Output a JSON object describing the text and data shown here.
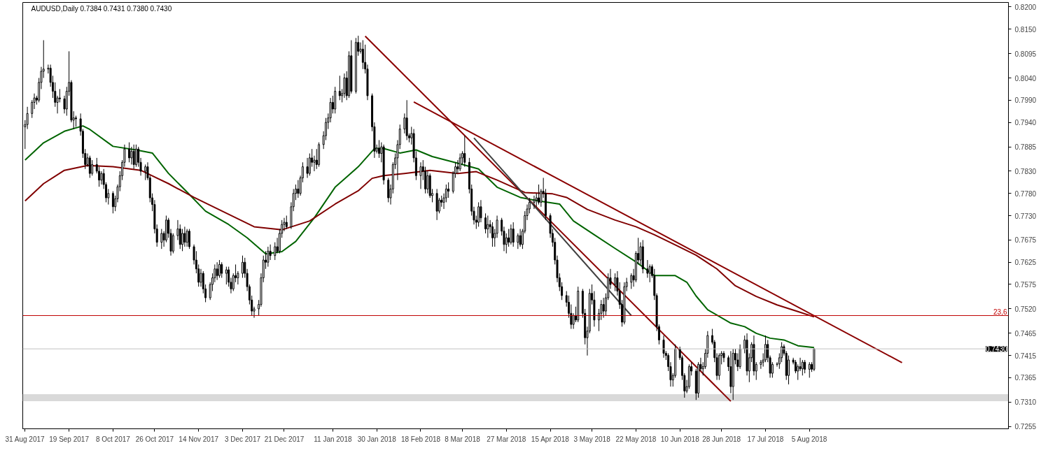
{
  "chart_data": {
    "type": "candlestick",
    "title": "AUDUSD,Daily  0.7384 0.7431 0.7380 0.7430",
    "x": [
      "2017-08-31",
      "2017-09-01",
      "2017-09-03",
      "2017-09-04",
      "2017-09-05",
      "2017-09-06",
      "2017-09-07",
      "2017-09-08",
      "2017-09-10",
      "2017-09-11",
      "2017-09-12",
      "2017-09-13",
      "2017-09-14",
      "2017-09-15",
      "2017-09-17",
      "2017-09-18",
      "2017-09-19",
      "2017-09-20",
      "2017-09-21",
      "2017-09-22",
      "2017-09-24",
      "2017-09-25",
      "2017-09-26",
      "2017-09-27",
      "2017-09-28",
      "2017-09-29",
      "2017-10-01",
      "2017-10-02",
      "2017-10-03",
      "2017-10-04",
      "2017-10-05",
      "2017-10-06",
      "2017-10-08",
      "2017-10-09",
      "2017-10-10",
      "2017-10-11",
      "2017-10-12",
      "2017-10-13",
      "2017-10-15",
      "2017-10-16",
      "2017-10-17",
      "2017-10-18",
      "2017-10-19",
      "2017-10-20",
      "2017-10-22",
      "2017-10-23",
      "2017-10-24",
      "2017-10-25",
      "2017-10-26",
      "2017-10-27",
      "2017-10-29",
      "2017-10-30",
      "2017-10-31",
      "2017-11-01",
      "2017-11-02",
      "2017-11-03",
      "2017-11-05",
      "2017-11-06",
      "2017-11-07",
      "2017-11-08",
      "2017-11-09",
      "2017-11-10",
      "2017-11-12",
      "2017-11-13",
      "2017-11-14",
      "2017-11-15",
      "2017-11-16",
      "2017-11-17",
      "2017-11-19",
      "2017-11-20",
      "2017-11-21",
      "2017-11-22",
      "2017-11-23",
      "2017-11-24",
      "2017-11-26",
      "2017-11-27",
      "2017-11-28",
      "2017-11-29",
      "2017-11-30",
      "2017-12-01",
      "2017-12-03",
      "2017-12-04",
      "2017-12-05",
      "2017-12-06",
      "2017-12-07",
      "2017-12-08",
      "2017-12-10",
      "2017-12-11",
      "2017-12-12",
      "2017-12-13",
      "2017-12-14",
      "2017-12-15",
      "2017-12-17",
      "2017-12-18",
      "2017-12-19",
      "2017-12-20",
      "2017-12-21",
      "2017-12-22",
      "2017-12-24",
      "2017-12-25",
      "2017-12-26",
      "2017-12-27",
      "2017-12-28",
      "2017-12-29",
      "2017-12-31",
      "2018-01-01",
      "2018-01-02",
      "2018-01-03",
      "2018-01-04",
      "2018-01-05",
      "2018-01-07",
      "2018-01-08",
      "2018-01-09",
      "2018-01-10",
      "2018-01-11",
      "2018-01-12",
      "2018-01-14",
      "2018-01-15",
      "2018-01-16",
      "2018-01-17",
      "2018-01-18",
      "2018-01-19",
      "2018-01-21",
      "2018-01-22",
      "2018-01-23",
      "2018-01-24",
      "2018-01-25",
      "2018-01-26",
      "2018-01-28",
      "2018-01-29",
      "2018-01-30",
      "2018-01-31",
      "2018-02-01",
      "2018-02-02",
      "2018-02-04",
      "2018-02-05",
      "2018-02-06",
      "2018-02-07",
      "2018-02-08",
      "2018-02-09",
      "2018-02-11",
      "2018-02-12",
      "2018-02-13",
      "2018-02-14",
      "2018-02-15",
      "2018-02-16",
      "2018-02-18",
      "2018-02-19",
      "2018-02-20",
      "2018-02-21",
      "2018-02-22",
      "2018-02-23",
      "2018-02-25",
      "2018-02-26",
      "2018-02-27",
      "2018-02-28",
      "2018-03-01",
      "2018-03-02",
      "2018-03-04",
      "2018-03-05",
      "2018-03-06",
      "2018-03-07",
      "2018-03-08",
      "2018-03-09",
      "2018-03-11",
      "2018-03-12",
      "2018-03-13",
      "2018-03-14",
      "2018-03-15",
      "2018-03-16",
      "2018-03-18",
      "2018-03-19",
      "2018-03-20",
      "2018-03-21",
      "2018-03-22",
      "2018-03-23",
      "2018-03-25",
      "2018-03-26",
      "2018-03-27",
      "2018-03-28",
      "2018-03-29",
      "2018-03-30",
      "2018-04-01",
      "2018-04-02",
      "2018-04-03",
      "2018-04-04",
      "2018-04-05",
      "2018-04-06",
      "2018-04-08",
      "2018-04-09",
      "2018-04-10",
      "2018-04-11",
      "2018-04-12",
      "2018-04-13",
      "2018-04-15",
      "2018-04-16",
      "2018-04-17",
      "2018-04-18",
      "2018-04-19",
      "2018-04-20",
      "2018-04-22",
      "2018-04-23",
      "2018-04-24",
      "2018-04-25",
      "2018-04-26",
      "2018-04-27",
      "2018-04-29",
      "2018-04-30",
      "2018-05-01",
      "2018-05-02",
      "2018-05-03",
      "2018-05-04",
      "2018-05-06",
      "2018-05-07",
      "2018-05-08",
      "2018-05-09",
      "2018-05-10",
      "2018-05-11",
      "2018-05-13",
      "2018-05-14",
      "2018-05-15",
      "2018-05-16",
      "2018-05-17",
      "2018-05-18",
      "2018-05-20",
      "2018-05-21",
      "2018-05-22",
      "2018-05-23",
      "2018-05-24",
      "2018-05-25",
      "2018-05-27",
      "2018-05-28",
      "2018-05-29",
      "2018-05-30",
      "2018-05-31",
      "2018-06-01",
      "2018-06-03",
      "2018-06-04",
      "2018-06-05",
      "2018-06-06",
      "2018-06-07",
      "2018-06-08",
      "2018-06-10",
      "2018-06-11",
      "2018-06-12",
      "2018-06-13",
      "2018-06-14",
      "2018-06-15",
      "2018-06-17",
      "2018-06-18",
      "2018-06-19",
      "2018-06-20",
      "2018-06-21",
      "2018-06-22",
      "2018-06-24",
      "2018-06-25",
      "2018-06-26",
      "2018-06-27",
      "2018-06-28",
      "2018-06-29",
      "2018-07-01",
      "2018-07-02",
      "2018-07-03",
      "2018-07-04",
      "2018-07-05",
      "2018-07-06",
      "2018-07-08",
      "2018-07-09",
      "2018-07-10",
      "2018-07-11",
      "2018-07-12",
      "2018-07-13",
      "2018-07-15",
      "2018-07-16",
      "2018-07-17",
      "2018-07-18",
      "2018-07-19",
      "2018-07-20",
      "2018-07-22",
      "2018-07-23",
      "2018-07-24",
      "2018-07-25",
      "2018-07-26",
      "2018-07-27",
      "2018-07-29",
      "2018-07-30",
      "2018-07-31",
      "2018-08-01",
      "2018-08-02",
      "2018-08-03",
      "2018-08-05",
      "2018-08-06",
      "2018-08-07"
    ],
    "ohlc": [
      [
        0.793,
        0.7945,
        0.788,
        0.7935
      ],
      [
        0.7935,
        0.7975,
        0.7925,
        0.796
      ],
      [
        0.796,
        0.799,
        0.795,
        0.7985
      ],
      [
        0.7985,
        0.8005,
        0.797,
        0.7995
      ],
      [
        0.7995,
        0.8,
        0.798,
        0.799
      ],
      [
        0.799,
        0.804,
        0.7985,
        0.803
      ],
      [
        0.803,
        0.8065,
        0.8015,
        0.8055
      ],
      [
        0.8055,
        0.8125,
        0.804,
        0.806
      ],
      [
        0.806,
        0.807,
        0.805,
        0.8062
      ],
      [
        0.8062,
        0.807,
        0.802,
        0.803
      ],
      [
        0.803,
        0.8045,
        0.7995,
        0.801
      ],
      [
        0.801,
        0.803,
        0.7975,
        0.7985
      ],
      [
        0.7985,
        0.8,
        0.796,
        0.7995
      ],
      [
        0.7995,
        0.8015,
        0.7985,
        0.7993
      ],
      [
        0.7993,
        0.8,
        0.796,
        0.797
      ],
      [
        0.797,
        0.802,
        0.7955,
        0.801
      ],
      [
        0.801,
        0.81,
        0.8,
        0.803
      ],
      [
        0.803,
        0.8035,
        0.794,
        0.7945
      ],
      [
        0.7945,
        0.7965,
        0.7925,
        0.795
      ],
      [
        0.795,
        0.7955,
        0.793,
        0.7948
      ],
      [
        0.7948,
        0.796,
        0.791,
        0.792
      ],
      [
        0.792,
        0.7925,
        0.786,
        0.787
      ],
      [
        0.787,
        0.788,
        0.7835,
        0.7845
      ],
      [
        0.7845,
        0.787,
        0.784,
        0.786
      ],
      [
        0.786,
        0.7865,
        0.7815,
        0.7825
      ],
      [
        0.7825,
        0.7855,
        0.782,
        0.7845
      ],
      [
        0.7845,
        0.786,
        0.7825,
        0.783
      ],
      [
        0.783,
        0.784,
        0.7795,
        0.781
      ],
      [
        0.781,
        0.783,
        0.78,
        0.7825
      ],
      [
        0.7825,
        0.7835,
        0.779,
        0.78
      ],
      [
        0.78,
        0.7805,
        0.776,
        0.777
      ],
      [
        0.777,
        0.779,
        0.7755,
        0.778
      ],
      [
        0.778,
        0.7785,
        0.7735,
        0.775
      ],
      [
        0.775,
        0.7775,
        0.774,
        0.7768
      ],
      [
        0.7768,
        0.78,
        0.776,
        0.7795
      ],
      [
        0.7795,
        0.783,
        0.7785,
        0.782
      ],
      [
        0.782,
        0.7855,
        0.781,
        0.785
      ],
      [
        0.785,
        0.789,
        0.784,
        0.788
      ],
      [
        0.788,
        0.7895,
        0.785,
        0.786
      ],
      [
        0.786,
        0.7885,
        0.7845,
        0.7875
      ],
      [
        0.7875,
        0.789,
        0.7835,
        0.7845
      ],
      [
        0.7845,
        0.789,
        0.784,
        0.788
      ],
      [
        0.788,
        0.7885,
        0.784,
        0.785
      ],
      [
        0.785,
        0.786,
        0.782,
        0.783
      ],
      [
        0.783,
        0.7845,
        0.781,
        0.784
      ],
      [
        0.784,
        0.785,
        0.781,
        0.7815
      ],
      [
        0.7815,
        0.782,
        0.776,
        0.777
      ],
      [
        0.777,
        0.778,
        0.774,
        0.7755
      ],
      [
        0.7755,
        0.7765,
        0.769,
        0.77
      ],
      [
        0.77,
        0.771,
        0.766,
        0.767
      ],
      [
        0.767,
        0.77,
        0.7655,
        0.769
      ],
      [
        0.769,
        0.7695,
        0.766,
        0.7675
      ],
      [
        0.7675,
        0.773,
        0.767,
        0.772
      ],
      [
        0.772,
        0.7725,
        0.768,
        0.769
      ],
      [
        0.769,
        0.77,
        0.764,
        0.765
      ],
      [
        0.765,
        0.769,
        0.7645,
        0.7685
      ],
      [
        0.7685,
        0.772,
        0.7675,
        0.77
      ],
      [
        0.77,
        0.771,
        0.7655,
        0.7665
      ],
      [
        0.7665,
        0.77,
        0.765,
        0.769
      ],
      [
        0.769,
        0.7705,
        0.766,
        0.767
      ],
      [
        0.767,
        0.77,
        0.766,
        0.7695
      ],
      [
        0.7695,
        0.77,
        0.7655,
        0.766
      ],
      [
        0.766,
        0.7665,
        0.762,
        0.763
      ],
      [
        0.763,
        0.765,
        0.76,
        0.761
      ],
      [
        0.761,
        0.762,
        0.757,
        0.758
      ],
      [
        0.758,
        0.761,
        0.757,
        0.76
      ],
      [
        0.76,
        0.7605,
        0.7555,
        0.7565
      ],
      [
        0.7565,
        0.7575,
        0.7535,
        0.7545
      ],
      [
        0.7545,
        0.758,
        0.754,
        0.7575
      ],
      [
        0.7575,
        0.76,
        0.756,
        0.759
      ],
      [
        0.759,
        0.762,
        0.758,
        0.761
      ],
      [
        0.761,
        0.7625,
        0.7585,
        0.7595
      ],
      [
        0.7595,
        0.763,
        0.759,
        0.762
      ],
      [
        0.762,
        0.7625,
        0.759,
        0.76
      ],
      [
        0.76,
        0.7615,
        0.7575,
        0.7608
      ],
      [
        0.7608,
        0.7615,
        0.757,
        0.758
      ],
      [
        0.758,
        0.759,
        0.7555,
        0.7565
      ],
      [
        0.7565,
        0.76,
        0.756,
        0.7595
      ],
      [
        0.7595,
        0.762,
        0.758,
        0.759
      ],
      [
        0.759,
        0.7605,
        0.7575,
        0.76
      ],
      [
        0.76,
        0.764,
        0.759,
        0.7625
      ],
      [
        0.7625,
        0.7635,
        0.759,
        0.76
      ],
      [
        0.76,
        0.761,
        0.756,
        0.757
      ],
      [
        0.757,
        0.7575,
        0.753,
        0.754
      ],
      [
        0.754,
        0.755,
        0.7505,
        0.7515
      ],
      [
        0.7515,
        0.7525,
        0.75,
        0.752
      ],
      [
        0.752,
        0.754,
        0.7505,
        0.753
      ],
      [
        0.753,
        0.76,
        0.7525,
        0.759
      ],
      [
        0.759,
        0.764,
        0.758,
        0.763
      ],
      [
        0.763,
        0.765,
        0.761,
        0.7625
      ],
      [
        0.7625,
        0.766,
        0.7615,
        0.765
      ],
      [
        0.765,
        0.7665,
        0.763,
        0.764
      ],
      [
        0.764,
        0.767,
        0.763,
        0.766
      ],
      [
        0.766,
        0.768,
        0.7645,
        0.765
      ],
      [
        0.765,
        0.77,
        0.7645,
        0.769
      ],
      [
        0.769,
        0.772,
        0.768,
        0.771
      ],
      [
        0.771,
        0.7725,
        0.7695,
        0.7715
      ],
      [
        0.7715,
        0.773,
        0.77,
        0.7705
      ],
      [
        0.7705,
        0.776,
        0.77,
        0.775
      ],
      [
        0.775,
        0.779,
        0.774,
        0.778
      ],
      [
        0.778,
        0.78,
        0.7765,
        0.779
      ],
      [
        0.779,
        0.781,
        0.777,
        0.778
      ],
      [
        0.778,
        0.782,
        0.7775,
        0.7815
      ],
      [
        0.7815,
        0.785,
        0.7805,
        0.784
      ],
      [
        0.784,
        0.786,
        0.7815,
        0.7825
      ],
      [
        0.7825,
        0.787,
        0.782,
        0.786
      ],
      [
        0.786,
        0.788,
        0.784,
        0.785
      ],
      [
        0.785,
        0.7865,
        0.783,
        0.7855
      ],
      [
        0.7855,
        0.788,
        0.7835,
        0.7845
      ],
      [
        0.7845,
        0.7895,
        0.784,
        0.789
      ],
      [
        0.789,
        0.792,
        0.788,
        0.791
      ],
      [
        0.791,
        0.795,
        0.79,
        0.794
      ],
      [
        0.794,
        0.796,
        0.7925,
        0.795
      ],
      [
        0.795,
        0.7995,
        0.794,
        0.7985
      ],
      [
        0.7985,
        0.8,
        0.796,
        0.797
      ],
      [
        0.797,
        0.802,
        0.796,
        0.801
      ],
      [
        0.801,
        0.8045,
        0.799,
        0.8
      ],
      [
        0.8,
        0.8015,
        0.7985,
        0.8005
      ],
      [
        0.8005,
        0.805,
        0.7995,
        0.804
      ],
      [
        0.804,
        0.8055,
        0.799,
        0.8
      ],
      [
        0.8,
        0.81,
        0.7995,
        0.809
      ],
      [
        0.809,
        0.8125,
        0.8005,
        0.801
      ],
      [
        0.801,
        0.813,
        0.8005,
        0.812
      ],
      [
        0.812,
        0.8135,
        0.809,
        0.81
      ],
      [
        0.81,
        0.812,
        0.8095,
        0.8105
      ],
      [
        0.8105,
        0.8125,
        0.806,
        0.8075
      ],
      [
        0.8075,
        0.8115,
        0.805,
        0.806
      ],
      [
        0.806,
        0.807,
        0.799,
        0.8
      ],
      [
        0.8,
        0.8005,
        0.792,
        0.793
      ],
      [
        0.793,
        0.794,
        0.786,
        0.7875
      ],
      [
        0.7875,
        0.789,
        0.787,
        0.7882
      ],
      [
        0.7882,
        0.79,
        0.786,
        0.787
      ],
      [
        0.787,
        0.7895,
        0.785,
        0.7885
      ],
      [
        0.7885,
        0.789,
        0.78,
        0.781
      ],
      [
        0.781,
        0.7815,
        0.776,
        0.777
      ],
      [
        0.777,
        0.78,
        0.7755,
        0.779
      ],
      [
        0.779,
        0.785,
        0.778,
        0.7845
      ],
      [
        0.7845,
        0.787,
        0.7835,
        0.786
      ],
      [
        0.786,
        0.79,
        0.781,
        0.789
      ],
      [
        0.789,
        0.7935,
        0.788,
        0.7925
      ],
      [
        0.7925,
        0.796,
        0.7915,
        0.795
      ],
      [
        0.795,
        0.799,
        0.79,
        0.791
      ],
      [
        0.791,
        0.7915,
        0.7895,
        0.7905
      ],
      [
        0.7905,
        0.793,
        0.789,
        0.7915
      ],
      [
        0.7915,
        0.7925,
        0.785,
        0.786
      ],
      [
        0.786,
        0.7875,
        0.781,
        0.782
      ],
      [
        0.782,
        0.785,
        0.779,
        0.784
      ],
      [
        0.784,
        0.7855,
        0.781,
        0.783
      ],
      [
        0.783,
        0.784,
        0.778,
        0.779
      ],
      [
        0.779,
        0.783,
        0.778,
        0.782
      ],
      [
        0.782,
        0.7825,
        0.777,
        0.7775
      ],
      [
        0.7775,
        0.779,
        0.776,
        0.778
      ],
      [
        0.778,
        0.779,
        0.772,
        0.774
      ],
      [
        0.774,
        0.777,
        0.7735,
        0.7765
      ],
      [
        0.7765,
        0.7775,
        0.775,
        0.776
      ],
      [
        0.776,
        0.778,
        0.7745,
        0.777
      ],
      [
        0.777,
        0.78,
        0.776,
        0.779
      ],
      [
        0.779,
        0.7805,
        0.777,
        0.7785
      ],
      [
        0.7785,
        0.783,
        0.778,
        0.7825
      ],
      [
        0.7825,
        0.785,
        0.7815,
        0.784
      ],
      [
        0.784,
        0.7855,
        0.7825,
        0.7835
      ],
      [
        0.7835,
        0.787,
        0.783,
        0.786
      ],
      [
        0.786,
        0.7875,
        0.7845,
        0.787
      ],
      [
        0.787,
        0.791,
        0.784,
        0.785
      ],
      [
        0.785,
        0.786,
        0.778,
        0.779
      ],
      [
        0.779,
        0.78,
        0.773,
        0.774
      ],
      [
        0.774,
        0.775,
        0.771,
        0.772
      ],
      [
        0.772,
        0.773,
        0.77,
        0.7715
      ],
      [
        0.7715,
        0.776,
        0.7705,
        0.775
      ],
      [
        0.775,
        0.7765,
        0.7715,
        0.7725
      ],
      [
        0.7725,
        0.7735,
        0.769,
        0.77
      ],
      [
        0.77,
        0.773,
        0.768,
        0.771
      ],
      [
        0.771,
        0.772,
        0.769,
        0.7705
      ],
      [
        0.7705,
        0.7715,
        0.766,
        0.768
      ],
      [
        0.768,
        0.77,
        0.766,
        0.769
      ],
      [
        0.769,
        0.773,
        0.768,
        0.772
      ],
      [
        0.772,
        0.7725,
        0.7685,
        0.7695
      ],
      [
        0.7695,
        0.7705,
        0.765,
        0.7665
      ],
      [
        0.7665,
        0.769,
        0.7645,
        0.768
      ],
      [
        0.768,
        0.77,
        0.766,
        0.767
      ],
      [
        0.767,
        0.771,
        0.7665,
        0.77
      ],
      [
        0.77,
        0.7715,
        0.766,
        0.767
      ],
      [
        0.767,
        0.769,
        0.7655,
        0.7685
      ],
      [
        0.7685,
        0.77,
        0.766,
        0.7665
      ],
      [
        0.7665,
        0.77,
        0.7655,
        0.7695
      ],
      [
        0.7695,
        0.774,
        0.769,
        0.773
      ],
      [
        0.773,
        0.7755,
        0.772,
        0.7745
      ],
      [
        0.7745,
        0.777,
        0.7735,
        0.776
      ],
      [
        0.776,
        0.7775,
        0.7745,
        0.7765
      ],
      [
        0.7765,
        0.778,
        0.775,
        0.777
      ],
      [
        0.777,
        0.78,
        0.7755,
        0.776
      ],
      [
        0.776,
        0.779,
        0.775,
        0.7785
      ],
      [
        0.7785,
        0.7815,
        0.777,
        0.778
      ],
      [
        0.778,
        0.779,
        0.772,
        0.773
      ],
      [
        0.773,
        0.7735,
        0.768,
        0.769
      ],
      [
        0.769,
        0.77,
        0.766,
        0.767
      ],
      [
        0.767,
        0.768,
        0.762,
        0.763
      ],
      [
        0.763,
        0.764,
        0.758,
        0.759
      ],
      [
        0.759,
        0.76,
        0.756,
        0.757
      ],
      [
        0.757,
        0.758,
        0.754,
        0.755
      ],
      [
        0.755,
        0.756,
        0.7525,
        0.7535
      ],
      [
        0.7535,
        0.755,
        0.75,
        0.751
      ],
      [
        0.751,
        0.753,
        0.7475,
        0.7485
      ],
      [
        0.7485,
        0.751,
        0.7475,
        0.7505
      ],
      [
        0.7505,
        0.7525,
        0.749,
        0.7495
      ],
      [
        0.7495,
        0.757,
        0.749,
        0.756
      ],
      [
        0.756,
        0.7565,
        0.75,
        0.751
      ],
      [
        0.751,
        0.752,
        0.744,
        0.7455
      ],
      [
        0.7455,
        0.748,
        0.7415,
        0.747
      ],
      [
        0.747,
        0.7565,
        0.7465,
        0.7555
      ],
      [
        0.7555,
        0.7575,
        0.753,
        0.754
      ],
      [
        0.754,
        0.756,
        0.748,
        0.7495
      ],
      [
        0.7495,
        0.752,
        0.747,
        0.751
      ],
      [
        0.751,
        0.754,
        0.7495,
        0.753
      ],
      [
        0.753,
        0.7545,
        0.75,
        0.7515
      ],
      [
        0.7515,
        0.7555,
        0.7505,
        0.7545
      ],
      [
        0.7545,
        0.76,
        0.754,
        0.759
      ],
      [
        0.759,
        0.761,
        0.7565,
        0.7575
      ],
      [
        0.7575,
        0.76,
        0.756,
        0.759
      ],
      [
        0.759,
        0.7605,
        0.755,
        0.756
      ],
      [
        0.756,
        0.758,
        0.752,
        0.753
      ],
      [
        0.753,
        0.754,
        0.748,
        0.749
      ],
      [
        0.749,
        0.758,
        0.7485,
        0.757
      ],
      [
        0.757,
        0.759,
        0.756,
        0.758
      ],
      [
        0.758,
        0.76,
        0.7565,
        0.7595
      ],
      [
        0.7595,
        0.761,
        0.757,
        0.7585
      ],
      [
        0.7585,
        0.765,
        0.758,
        0.7645
      ],
      [
        0.7645,
        0.768,
        0.762,
        0.763
      ],
      [
        0.763,
        0.767,
        0.762,
        0.766
      ],
      [
        0.766,
        0.7675,
        0.76,
        0.761
      ],
      [
        0.761,
        0.763,
        0.759,
        0.76
      ],
      [
        0.76,
        0.762,
        0.758,
        0.7615
      ],
      [
        0.7615,
        0.762,
        0.759,
        0.7595
      ],
      [
        0.7595,
        0.761,
        0.754,
        0.755
      ],
      [
        0.755,
        0.7555,
        0.747,
        0.748
      ],
      [
        0.748,
        0.7485,
        0.744,
        0.745
      ],
      [
        0.745,
        0.746,
        0.741,
        0.742
      ],
      [
        0.742,
        0.7425,
        0.7405,
        0.7415
      ],
      [
        0.7415,
        0.742,
        0.738,
        0.739
      ],
      [
        0.739,
        0.74,
        0.7345,
        0.736
      ],
      [
        0.736,
        0.7375,
        0.7345,
        0.737
      ],
      [
        0.737,
        0.744,
        0.7365,
        0.743
      ],
      [
        0.743,
        0.7435,
        0.7405,
        0.741
      ],
      [
        0.741,
        0.7415,
        0.736,
        0.737
      ],
      [
        0.737,
        0.7375,
        0.732,
        0.7335
      ],
      [
        0.7335,
        0.736,
        0.733,
        0.7345
      ],
      [
        0.7345,
        0.7395,
        0.734,
        0.739
      ],
      [
        0.739,
        0.74,
        0.737,
        0.738
      ],
      [
        0.738,
        0.7385,
        0.7315,
        0.733
      ],
      [
        0.733,
        0.74,
        0.732,
        0.7395
      ],
      [
        0.7395,
        0.741,
        0.738,
        0.7385
      ],
      [
        0.7385,
        0.74,
        0.737,
        0.739
      ],
      [
        0.739,
        0.743,
        0.7385,
        0.742
      ],
      [
        0.742,
        0.747,
        0.741,
        0.746
      ],
      [
        0.746,
        0.7475,
        0.744,
        0.7445
      ],
      [
        0.7445,
        0.745,
        0.74,
        0.741
      ],
      [
        0.741,
        0.742,
        0.736,
        0.737
      ],
      [
        0.737,
        0.742,
        0.736,
        0.7415
      ],
      [
        0.7415,
        0.7425,
        0.7395,
        0.742
      ],
      [
        0.742,
        0.7425,
        0.74,
        0.741
      ],
      [
        0.741,
        0.7415,
        0.738,
        0.739
      ],
      [
        0.739,
        0.7425,
        0.733,
        0.7345
      ],
      [
        0.7345,
        0.743,
        0.7315,
        0.742
      ],
      [
        0.742,
        0.743,
        0.7395,
        0.7405
      ],
      [
        0.7405,
        0.742,
        0.738,
        0.739
      ],
      [
        0.739,
        0.744,
        0.7385,
        0.743
      ],
      [
        0.743,
        0.746,
        0.742,
        0.745
      ],
      [
        0.745,
        0.7465,
        0.737,
        0.738
      ],
      [
        0.738,
        0.742,
        0.7355,
        0.741
      ],
      [
        0.741,
        0.7445,
        0.74,
        0.744
      ],
      [
        0.744,
        0.746,
        0.737,
        0.738
      ],
      [
        0.738,
        0.74,
        0.736,
        0.7395
      ],
      [
        0.7395,
        0.7405,
        0.7385,
        0.74
      ],
      [
        0.74,
        0.742,
        0.739,
        0.7405
      ],
      [
        0.7405,
        0.746,
        0.74,
        0.744
      ],
      [
        0.744,
        0.745,
        0.74,
        0.741
      ],
      [
        0.741,
        0.7415,
        0.7365,
        0.7375
      ],
      [
        0.7375,
        0.74,
        0.7365,
        0.7395
      ],
      [
        0.7395,
        0.74,
        0.739,
        0.7396
      ],
      [
        0.7396,
        0.742,
        0.7385,
        0.741
      ],
      [
        0.741,
        0.7445,
        0.74,
        0.7435
      ],
      [
        0.7435,
        0.744,
        0.7415,
        0.742
      ],
      [
        0.742,
        0.7425,
        0.736,
        0.737
      ],
      [
        0.737,
        0.7415,
        0.735,
        0.7405
      ],
      [
        0.7405,
        0.741,
        0.7395,
        0.74
      ],
      [
        0.74,
        0.7405,
        0.7375,
        0.738
      ],
      [
        0.738,
        0.7395,
        0.736,
        0.739
      ],
      [
        0.739,
        0.741,
        0.738,
        0.7385
      ],
      [
        0.7385,
        0.7405,
        0.737,
        0.74
      ],
      [
        0.74,
        0.7405,
        0.7375,
        0.7384
      ],
      [
        0.7384,
        0.74,
        0.7365,
        0.7395
      ],
      [
        0.7395,
        0.74,
        0.7378,
        0.7384
      ],
      [
        0.7384,
        0.7431,
        0.738,
        0.743
      ]
    ],
    "series": [
      {
        "type": "line",
        "color": "#006400",
        "x": [
          "2017-08-31",
          "2017-09-08",
          "2017-09-17",
          "2017-09-25",
          "2017-09-28",
          "2017-10-08",
          "2017-10-18",
          "2017-10-25",
          "2017-11-01",
          "2017-11-09",
          "2017-11-17",
          "2017-11-27",
          "2017-12-05",
          "2017-12-13",
          "2017-12-20",
          "2017-12-26",
          "2018-01-03",
          "2018-01-12",
          "2018-01-22",
          "2018-01-29",
          "2018-02-02",
          "2018-02-09",
          "2018-02-16",
          "2018-02-23",
          "2018-03-06",
          "2018-03-15",
          "2018-03-23",
          "2018-04-02",
          "2018-04-10",
          "2018-04-19",
          "2018-04-25",
          "2018-05-04",
          "2018-05-13",
          "2018-05-22",
          "2018-05-30",
          "2018-06-08",
          "2018-06-13",
          "2018-06-17",
          "2018-06-22",
          "2018-07-02",
          "2018-07-08",
          "2018-07-13",
          "2018-07-19",
          "2018-07-25",
          "2018-07-31",
          "2018-08-07"
        ],
        "values": [
          0.7855,
          0.7894,
          0.792,
          0.7932,
          0.7924,
          0.7886,
          0.7878,
          0.7871,
          0.7825,
          0.7783,
          0.774,
          0.771,
          0.768,
          0.7644,
          0.7649,
          0.7672,
          0.7725,
          0.7794,
          0.784,
          0.7881,
          0.7881,
          0.7871,
          0.7878,
          0.7863,
          0.7848,
          0.7835,
          0.7794,
          0.7771,
          0.7763,
          0.7756,
          0.7718,
          0.7687,
          0.7656,
          0.7626,
          0.7595,
          0.7595,
          0.758,
          0.7549,
          0.7518,
          0.7488,
          0.748,
          0.7465,
          0.7454,
          0.745,
          0.7437,
          0.7433
        ]
      },
      {
        "type": "line",
        "color": "#800000",
        "x": [
          "2017-08-31",
          "2017-09-08",
          "2017-09-17",
          "2017-09-27",
          "2017-10-08",
          "2017-10-20",
          "2017-11-01",
          "2017-11-12",
          "2017-11-27",
          "2017-12-08",
          "2017-12-20",
          "2018-01-01",
          "2018-01-12",
          "2018-01-22",
          "2018-01-28",
          "2018-02-02",
          "2018-02-11",
          "2018-02-22",
          "2018-03-06",
          "2018-03-14",
          "2018-03-23",
          "2018-04-04",
          "2018-04-16",
          "2018-04-22",
          "2018-05-01",
          "2018-05-13",
          "2018-05-22",
          "2018-05-30",
          "2018-06-08",
          "2018-06-17",
          "2018-06-26",
          "2018-07-04",
          "2018-07-13",
          "2018-07-22",
          "2018-07-31",
          "2018-08-07"
        ],
        "values": [
          0.7763,
          0.7802,
          0.7832,
          0.7843,
          0.784,
          0.7832,
          0.7802,
          0.7771,
          0.7733,
          0.7705,
          0.7698,
          0.7718,
          0.7756,
          0.7786,
          0.7814,
          0.782,
          0.7825,
          0.7832,
          0.7825,
          0.7829,
          0.781,
          0.7782,
          0.7779,
          0.7771,
          0.7744,
          0.772,
          0.7705,
          0.7687,
          0.7664,
          0.7641,
          0.761,
          0.7572,
          0.7548,
          0.7529,
          0.7514,
          0.7502
        ]
      },
      {
        "type": "line",
        "color": "#8b0000",
        "x": [
          "2018-01-25",
          "2018-07-02"
        ],
        "values": [
          0.8134,
          0.7312
        ]
      },
      {
        "type": "line",
        "color": "#8b0000",
        "x": [
          "2018-02-15",
          "2018-09-14"
        ],
        "values": [
          0.7986,
          0.7399
        ]
      },
      {
        "type": "line",
        "color": "#404040",
        "x": [
          "2018-03-13",
          "2018-05-20"
        ],
        "values": [
          0.7905,
          0.7505
        ]
      }
    ],
    "ref_lines": [
      {
        "axis": "y",
        "value": 0.7505,
        "color": "#c00000"
      },
      {
        "axis": "y",
        "value": 0.743,
        "label": "0.7430",
        "color": "#c0c0c0"
      }
    ],
    "bands": [
      {
        "axis": "y",
        "from": 0.7312,
        "to": 0.7328,
        "color": "#d9d9d9"
      }
    ],
    "annotations": [
      {
        "text": "23,6",
        "x": "2018-10-30",
        "y": 0.7505
      }
    ],
    "xlim": [
      "2017-08-30",
      "2018-10-30"
    ],
    "ylim": [
      0.725,
      0.821
    ],
    "xticks": [
      {
        "value": "2017-08-31",
        "label": "31 Aug 2017"
      },
      {
        "value": "2017-09-19",
        "label": "19 Sep 2017"
      },
      {
        "value": "2017-10-08",
        "label": "8 Oct 2017"
      },
      {
        "value": "2017-10-26",
        "label": "26 Oct 2017"
      },
      {
        "value": "2017-11-14",
        "label": "14 Nov 2017"
      },
      {
        "value": "2017-12-03",
        "label": "3 Dec 2017"
      },
      {
        "value": "2017-12-21",
        "label": "21 Dec 2017"
      },
      {
        "value": "2018-01-11",
        "label": "11 Jan 2018"
      },
      {
        "value": "2018-01-30",
        "label": "30 Jan 2018"
      },
      {
        "value": "2018-02-18",
        "label": "18 Feb 2018"
      },
      {
        "value": "2018-03-08",
        "label": "8 Mar 2018"
      },
      {
        "value": "2018-03-27",
        "label": "27 Mar 2018"
      },
      {
        "value": "2018-04-15",
        "label": "15 Apr 2018"
      },
      {
        "value": "2018-05-03",
        "label": "3 May 2018"
      },
      {
        "value": "2018-05-22",
        "label": "22 May 2018"
      },
      {
        "value": "2018-06-10",
        "label": "10 Jun 2018"
      },
      {
        "value": "2018-06-28",
        "label": "28 Jun 2018"
      },
      {
        "value": "2018-07-17",
        "label": "17 Jul 2018"
      },
      {
        "value": "2018-08-05",
        "label": "5 Aug 2018"
      }
    ],
    "yticks": [
      {
        "value": 0.7255,
        "label": "0.7255"
      },
      {
        "value": 0.731,
        "label": "0.7310"
      },
      {
        "value": 0.7365,
        "label": "0.7365"
      },
      {
        "value": 0.7415,
        "label": "0.7415"
      },
      {
        "value": 0.7465,
        "label": "0.7465"
      },
      {
        "value": 0.752,
        "label": "0.7520"
      },
      {
        "value": 0.7575,
        "label": "0.7575"
      },
      {
        "value": 0.7625,
        "label": "0.7625"
      },
      {
        "value": 0.7675,
        "label": "0.7675"
      },
      {
        "value": 0.773,
        "label": "0.7730"
      },
      {
        "value": 0.778,
        "label": "0.7780"
      },
      {
        "value": 0.783,
        "label": "0.7830"
      },
      {
        "value": 0.7885,
        "label": "0.7885"
      },
      {
        "value": 0.794,
        "label": "0.7940"
      },
      {
        "value": 0.799,
        "label": "0.7990"
      },
      {
        "value": 0.804,
        "label": "0.8040"
      },
      {
        "value": 0.8095,
        "label": "0.8095"
      },
      {
        "value": 0.815,
        "label": "0.8150"
      },
      {
        "value": 0.82,
        "label": "0.8200"
      }
    ],
    "grid": false
  }
}
